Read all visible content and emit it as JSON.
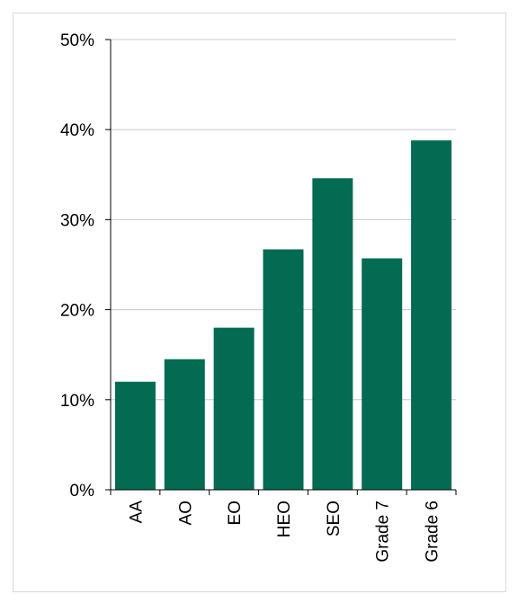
{
  "chart_data": {
    "type": "bar",
    "title": "",
    "xlabel": "",
    "ylabel": "",
    "categories": [
      "AA",
      "AO",
      "EO",
      "HEO",
      "SEO",
      "Grade 7",
      "Grade 6"
    ],
    "values": [
      12,
      14.5,
      18,
      26.7,
      34.6,
      25.7,
      38.8
    ],
    "ylim": [
      0,
      50
    ],
    "yticks": [
      "0%",
      "10%",
      "20%",
      "30%",
      "40%",
      "50%"
    ],
    "grid": true,
    "legend": "none",
    "colors": {
      "bar": "#036B52",
      "grid": "#c8c8c8",
      "axis": "#000000"
    }
  }
}
